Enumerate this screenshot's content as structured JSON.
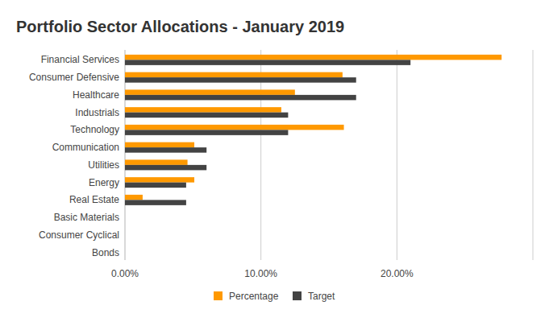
{
  "chart_data": {
    "type": "bar",
    "orientation": "horizontal",
    "title": "Portfolio Sector Allocations - January 2019",
    "categories": [
      "Financial Services",
      "Consumer Defensive",
      "Healthcare",
      "Industrials",
      "Technology",
      "Communication",
      "Utilities",
      "Energy",
      "Real Estate",
      "Basic Materials",
      "Consumer Cyclical",
      "Bonds"
    ],
    "series": [
      {
        "name": "Percentage",
        "color": "#ff9900",
        "values": [
          27.7,
          16.0,
          12.5,
          11.5,
          16.1,
          5.1,
          4.6,
          5.1,
          1.3,
          0,
          0,
          0
        ]
      },
      {
        "name": "Target",
        "color": "#434343",
        "values": [
          21.0,
          17.0,
          17.0,
          12.0,
          12.0,
          6.0,
          6.0,
          4.5,
          4.5,
          0,
          0,
          0
        ]
      }
    ],
    "xlim": [
      0,
      30
    ],
    "xticks": [
      {
        "value": 0,
        "label": "0.00%"
      },
      {
        "value": 10,
        "label": "10.00%"
      },
      {
        "value": 20,
        "label": "20.00%"
      }
    ],
    "grid": true,
    "legend": "bottom"
  }
}
